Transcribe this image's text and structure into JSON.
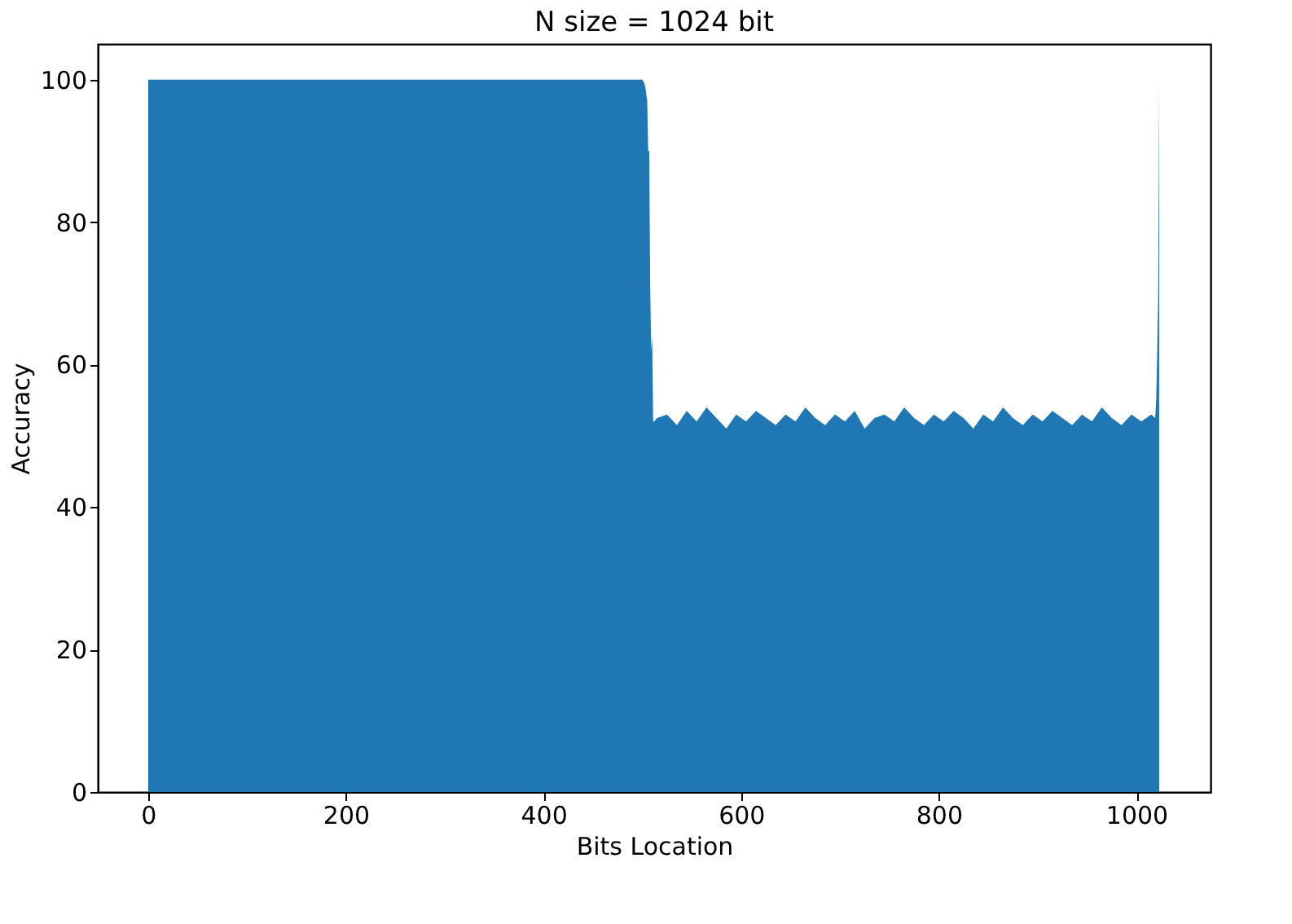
{
  "chart_data": {
    "type": "area",
    "title": "N size = 1024 bit",
    "xlabel": "Bits Location",
    "ylabel": "Accuracy",
    "color": "#1f77b4",
    "x": [
      0,
      100,
      200,
      300,
      400,
      498,
      500,
      502,
      503,
      504,
      505,
      506,
      507,
      508,
      509,
      510,
      511,
      512,
      515,
      525,
      535,
      545,
      555,
      565,
      575,
      585,
      595,
      605,
      615,
      625,
      635,
      645,
      655,
      665,
      675,
      685,
      695,
      705,
      715,
      725,
      735,
      745,
      755,
      765,
      775,
      785,
      795,
      805,
      815,
      825,
      835,
      845,
      855,
      865,
      875,
      885,
      895,
      905,
      915,
      925,
      935,
      945,
      955,
      965,
      975,
      985,
      995,
      1005,
      1015,
      1019,
      1020,
      1021,
      1022,
      1023
    ],
    "values": [
      100,
      100,
      100,
      100,
      100,
      100,
      100,
      99.5,
      99,
      98,
      97,
      90,
      90,
      71,
      62,
      64,
      52,
      52,
      52.5,
      53,
      51.5,
      53.5,
      52,
      54,
      52.5,
      51,
      53,
      52,
      53.5,
      52.5,
      51.5,
      53,
      52,
      54,
      52.5,
      51.5,
      53,
      52,
      53.5,
      51,
      52.5,
      53,
      52,
      54,
      52.5,
      51.5,
      53,
      52,
      53.5,
      52.5,
      51,
      53,
      52,
      54,
      52.5,
      51.5,
      53,
      52,
      53.5,
      52.5,
      51.5,
      53,
      52,
      54,
      52.5,
      51.5,
      53,
      52,
      53,
      52.5,
      55,
      61.5,
      70,
      100
    ],
    "xlim": [
      -51,
      1075
    ],
    "ylim": [
      0,
      105
    ],
    "xticks": [
      0,
      200,
      400,
      600,
      800,
      1000
    ],
    "yticks": [
      0,
      20,
      40,
      60,
      80,
      100
    ],
    "grid": false
  }
}
